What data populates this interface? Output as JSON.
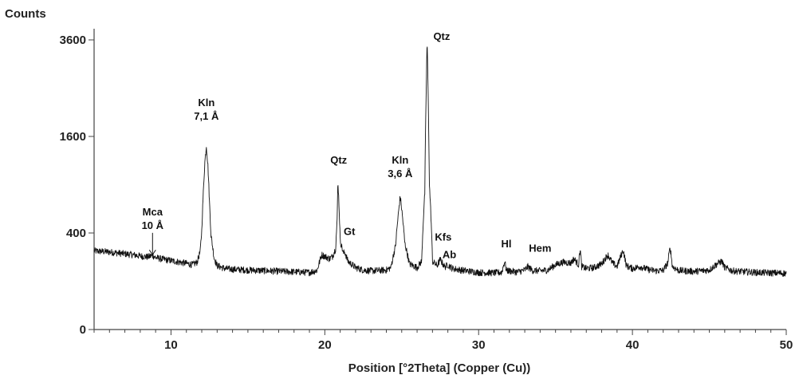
{
  "chart_data": {
    "type": "line",
    "title": "",
    "ylabel": "Counts",
    "xlabel": "Position [°2Theta] (Copper (Cu))",
    "xlim": [
      5,
      50
    ],
    "ylim": [
      0,
      3600
    ],
    "y_scale": "sqrt",
    "x_ticks": [
      10,
      20,
      30,
      40,
      50
    ],
    "x_minor_step": 1,
    "y_ticks": [
      0,
      400,
      1600,
      3600
    ],
    "grid": false,
    "line_color": "#111111",
    "series": [
      {
        "points": [
          [
            5.0,
            265
          ],
          [
            5.5,
            262
          ],
          [
            6.0,
            258
          ],
          [
            6.5,
            252
          ],
          [
            7.0,
            246
          ],
          [
            7.5,
            240
          ],
          [
            8.0,
            232
          ],
          [
            8.5,
            226
          ],
          [
            8.8,
            236
          ],
          [
            9.0,
            222
          ],
          [
            9.5,
            212
          ],
          [
            10.0,
            204
          ],
          [
            10.5,
            196
          ],
          [
            11.0,
            188
          ],
          [
            11.4,
            180
          ],
          [
            11.7,
            195
          ],
          [
            11.9,
            260
          ],
          [
            12.0,
            420
          ],
          [
            12.1,
            800
          ],
          [
            12.2,
            1200
          ],
          [
            12.3,
            1450
          ],
          [
            12.4,
            1150
          ],
          [
            12.5,
            700
          ],
          [
            12.6,
            380
          ],
          [
            12.8,
            220
          ],
          [
            13.0,
            175
          ],
          [
            13.5,
            160
          ],
          [
            14.0,
            156
          ],
          [
            15.0,
            152
          ],
          [
            16.0,
            149
          ],
          [
            17.0,
            146
          ],
          [
            18.0,
            143
          ],
          [
            19.0,
            140
          ],
          [
            19.5,
            150
          ],
          [
            19.8,
            240
          ],
          [
            20.0,
            230
          ],
          [
            20.3,
            215
          ],
          [
            20.5,
            230
          ],
          [
            20.7,
            280
          ],
          [
            20.8,
            500
          ],
          [
            20.85,
            950
          ],
          [
            20.9,
            760
          ],
          [
            21.0,
            340
          ],
          [
            21.2,
            250
          ],
          [
            21.3,
            258
          ],
          [
            21.5,
            200
          ],
          [
            22.0,
            165
          ],
          [
            22.5,
            152
          ],
          [
            23.0,
            148
          ],
          [
            23.5,
            150
          ],
          [
            24.0,
            152
          ],
          [
            24.3,
            165
          ],
          [
            24.6,
            300
          ],
          [
            24.8,
            600
          ],
          [
            24.9,
            760
          ],
          [
            25.0,
            620
          ],
          [
            25.2,
            320
          ],
          [
            25.5,
            185
          ],
          [
            26.0,
            165
          ],
          [
            26.3,
            200
          ],
          [
            26.5,
            800
          ],
          [
            26.6,
            2600
          ],
          [
            26.65,
            3600
          ],
          [
            26.7,
            2700
          ],
          [
            26.8,
            900
          ],
          [
            27.0,
            200
          ],
          [
            27.3,
            175
          ],
          [
            27.5,
            210
          ],
          [
            27.8,
            168
          ],
          [
            28.0,
            180
          ],
          [
            28.3,
            160
          ],
          [
            29.0,
            150
          ],
          [
            30.0,
            140
          ],
          [
            31.0,
            138
          ],
          [
            31.5,
            140
          ],
          [
            31.7,
            200
          ],
          [
            31.8,
            150
          ],
          [
            32.5,
            142
          ],
          [
            33.0,
            152
          ],
          [
            33.2,
            170
          ],
          [
            33.5,
            150
          ],
          [
            34.0,
            148
          ],
          [
            34.5,
            152
          ],
          [
            35.0,
            180
          ],
          [
            35.5,
            195
          ],
          [
            36.0,
            190
          ],
          [
            36.2,
            215
          ],
          [
            36.5,
            180
          ],
          [
            36.6,
            280
          ],
          [
            36.7,
            170
          ],
          [
            37.0,
            160
          ],
          [
            37.5,
            165
          ],
          [
            38.0,
            185
          ],
          [
            38.4,
            240
          ],
          [
            38.7,
            190
          ],
          [
            39.0,
            170
          ],
          [
            39.4,
            270
          ],
          [
            39.6,
            175
          ],
          [
            40.0,
            160
          ],
          [
            40.5,
            170
          ],
          [
            41.0,
            155
          ],
          [
            41.5,
            148
          ],
          [
            42.0,
            150
          ],
          [
            42.3,
            190
          ],
          [
            42.45,
            290
          ],
          [
            42.6,
            170
          ],
          [
            43.0,
            150
          ],
          [
            44.0,
            145
          ],
          [
            45.0,
            152
          ],
          [
            45.5,
            185
          ],
          [
            45.8,
            200
          ],
          [
            46.0,
            165
          ],
          [
            46.5,
            148
          ],
          [
            47.0,
            145
          ],
          [
            48.0,
            140
          ],
          [
            49.0,
            138
          ],
          [
            50.0,
            136
          ]
        ]
      }
    ],
    "annotations": [
      {
        "lines": [
          "Mca",
          "10 Å"
        ],
        "x": 8.8,
        "y": 560,
        "arrow_to_y": 240
      },
      {
        "lines": [
          "Kln",
          "7,1 Å"
        ],
        "x": 12.3,
        "y": 2140
      },
      {
        "lines": [
          "Qtz"
        ],
        "x": 20.9,
        "y": 1180
      },
      {
        "lines": [
          "Gt"
        ],
        "x": 21.6,
        "y": 385
      },
      {
        "lines": [
          "Kln",
          "3,6 Å"
        ],
        "x": 24.9,
        "y": 1180
      },
      {
        "lines": [
          "Qtz"
        ],
        "x": 27.6,
        "y": 3600
      },
      {
        "lines": [
          "Kfs"
        ],
        "x": 27.7,
        "y": 340
      },
      {
        "lines": [
          "Ab"
        ],
        "x": 28.1,
        "y": 220
      },
      {
        "lines": [
          "Hl"
        ],
        "x": 31.8,
        "y": 290
      },
      {
        "lines": [
          "Hem"
        ],
        "x": 34.0,
        "y": 260
      }
    ]
  }
}
